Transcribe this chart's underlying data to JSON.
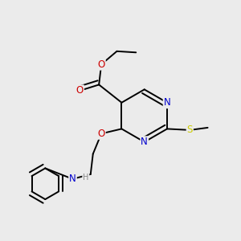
{
  "background_color": "#ebebeb",
  "atom_colors": {
    "C": "#000000",
    "N": "#0000cc",
    "O": "#cc0000",
    "S": "#cccc00",
    "H": "#888888"
  },
  "bond_color": "#000000",
  "bond_width": 1.4,
  "fig_size": [
    3.0,
    3.0
  ],
  "dpi": 100
}
